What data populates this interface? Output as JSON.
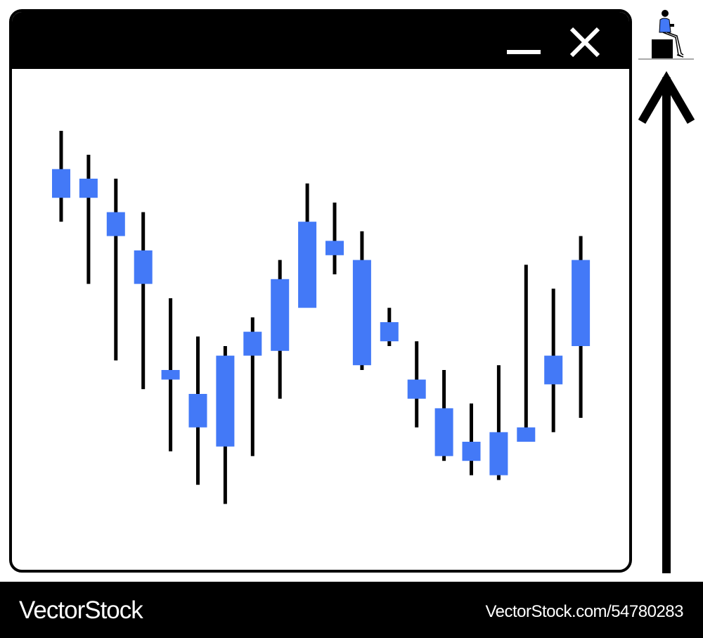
{
  "window": {
    "minimize_icon": "minimize-icon",
    "close_icon": "close-icon"
  },
  "colors": {
    "candle_body": "#4379f7",
    "wick": "#000000",
    "frame": "#000000"
  },
  "chart_data": {
    "type": "candlestick",
    "title": "",
    "xlabel": "",
    "ylabel": "",
    "grid": false,
    "ylim": [
      0,
      100
    ],
    "candles": [
      {
        "high": 90,
        "low": 71,
        "top": 82,
        "bottom": 76
      },
      {
        "high": 85,
        "low": 58,
        "top": 80,
        "bottom": 76
      },
      {
        "high": 80,
        "low": 42,
        "top": 73,
        "bottom": 68
      },
      {
        "high": 73,
        "low": 36,
        "top": 65,
        "bottom": 58
      },
      {
        "high": 55,
        "low": 23,
        "top": 40,
        "bottom": 38
      },
      {
        "high": 47,
        "low": 16,
        "top": 35,
        "bottom": 28
      },
      {
        "high": 45,
        "low": 12,
        "top": 43,
        "bottom": 24
      },
      {
        "high": 51,
        "low": 22,
        "top": 48,
        "bottom": 43
      },
      {
        "high": 63,
        "low": 34,
        "top": 59,
        "bottom": 44
      },
      {
        "high": 79,
        "low": 54,
        "top": 71,
        "bottom": 53
      },
      {
        "high": 75,
        "low": 60,
        "top": 67,
        "bottom": 64
      },
      {
        "high": 69,
        "low": 40,
        "top": 63,
        "bottom": 41
      },
      {
        "high": 53,
        "low": 45,
        "top": 50,
        "bottom": 46
      },
      {
        "high": 46,
        "low": 28,
        "top": 38,
        "bottom": 34
      },
      {
        "high": 40,
        "low": 21,
        "top": 32,
        "bottom": 22
      },
      {
        "high": 33,
        "low": 18,
        "top": 25,
        "bottom": 21
      },
      {
        "high": 41,
        "low": 17,
        "top": 27,
        "bottom": 18
      },
      {
        "high": 62,
        "low": 26,
        "top": 28,
        "bottom": 25
      },
      {
        "high": 57,
        "low": 27,
        "top": 43,
        "bottom": 37
      },
      {
        "high": 68,
        "low": 30,
        "top": 63,
        "bottom": 45
      }
    ]
  },
  "side": {
    "arrow_icon": "up-arrow-icon",
    "figure_icon": "person-sitting-with-phone-icon"
  },
  "footer": {
    "brand": "VectorStock",
    "reference": "VectorStock.com/54780283"
  }
}
